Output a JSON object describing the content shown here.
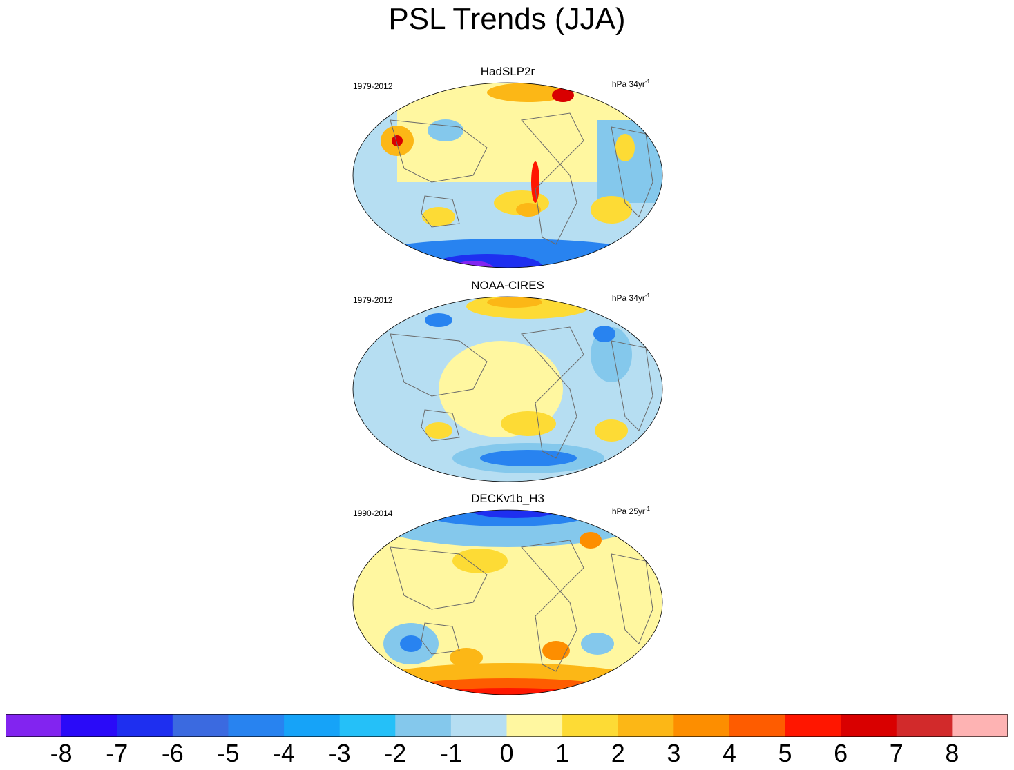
{
  "title": "PSL Trends (JJA)",
  "panels": [
    {
      "name": "HadSLP2r",
      "period": "1979-2012",
      "unit_base": "hPa 34yr",
      "unit_exp": "-1"
    },
    {
      "name": "NOAA-CIRES",
      "period": "1979-2012",
      "unit_base": "hPa 34yr",
      "unit_exp": "-1"
    },
    {
      "name": "DECKv1b_H3",
      "period": "1990-2014",
      "unit_base": "hPa 25yr",
      "unit_exp": "-1"
    }
  ],
  "colorbar": {
    "colors": [
      "#8224f0",
      "#2a0af8",
      "#1e2ff0",
      "#3b6ae0",
      "#2883f0",
      "#16a3f8",
      "#25c0f8",
      "#84c8ec",
      "#b6def2",
      "#fff7a0",
      "#fddb35",
      "#fcb716",
      "#fd8e00",
      "#fe5c00",
      "#ff1600",
      "#d90000",
      "#d22a2b",
      "#feb3b3"
    ],
    "tick_labels": [
      "-8",
      "-7",
      "-6",
      "-5",
      "-4",
      "-3",
      "-2",
      "-1",
      "0",
      "1",
      "2",
      "3",
      "4",
      "5",
      "6",
      "7",
      "8"
    ]
  }
}
